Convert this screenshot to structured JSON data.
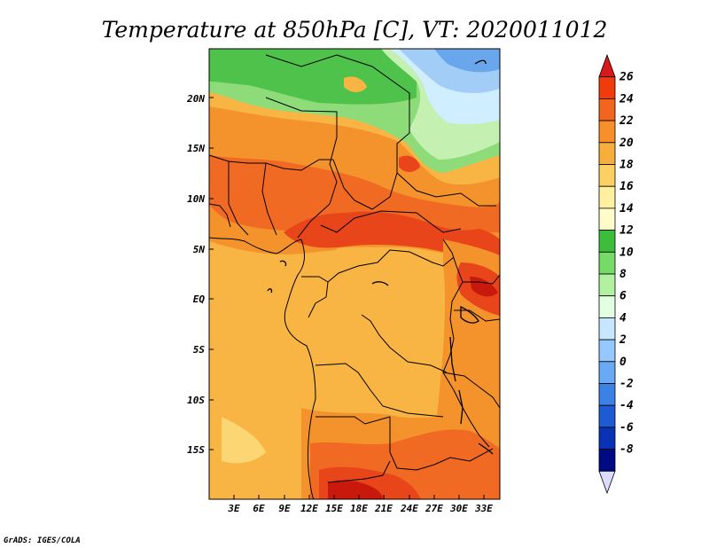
{
  "title": "Temperature at 850hPa [C], VT: 2020011012",
  "credit": "GrADS: IGES/COLA",
  "lat_ticks": [
    "20N",
    "15N",
    "10N",
    "5N",
    "EQ",
    "5S",
    "10S",
    "15S"
  ],
  "lon_ticks": [
    "3E",
    "6E",
    "9E",
    "12E",
    "15E",
    "18E",
    "21E",
    "24E",
    "27E",
    "30E",
    "33E"
  ],
  "colorbar": {
    "labels": [
      "26",
      "24",
      "22",
      "20",
      "18",
      "16",
      "14",
      "12",
      "10",
      "8",
      "6",
      "4",
      "2",
      "0",
      "-2",
      "-4",
      "-6",
      "-8"
    ],
    "colors": [
      "#d7191c",
      "#f03b0b",
      "#f2651e",
      "#f7902a",
      "#f6ae3c",
      "#fdd064",
      "#fff0a0",
      "#fffccc",
      "#3cbd3c",
      "#76dc67",
      "#b2f0a2",
      "#e2ffe2",
      "#c6e7ff",
      "#96c8ff",
      "#6aaaf5",
      "#3c82e6",
      "#1e5ad2",
      "#0a32b4",
      "#000a82",
      "#dcdcff"
    ]
  },
  "field_colors": {
    "deep_red": "#c8190c",
    "red": "#e8451a",
    "orange_red": "#f06a23",
    "orange": "#f4922c",
    "light_orange": "#f8b544",
    "pale": "#fbd672",
    "green": "#4ec24a",
    "light_green": "#8edb7a",
    "pale_green": "#c4f0b2",
    "cyan": "#cfeeff",
    "light_blue": "#a2cdf7",
    "blue": "#6aa6ec",
    "border": "#000000"
  }
}
